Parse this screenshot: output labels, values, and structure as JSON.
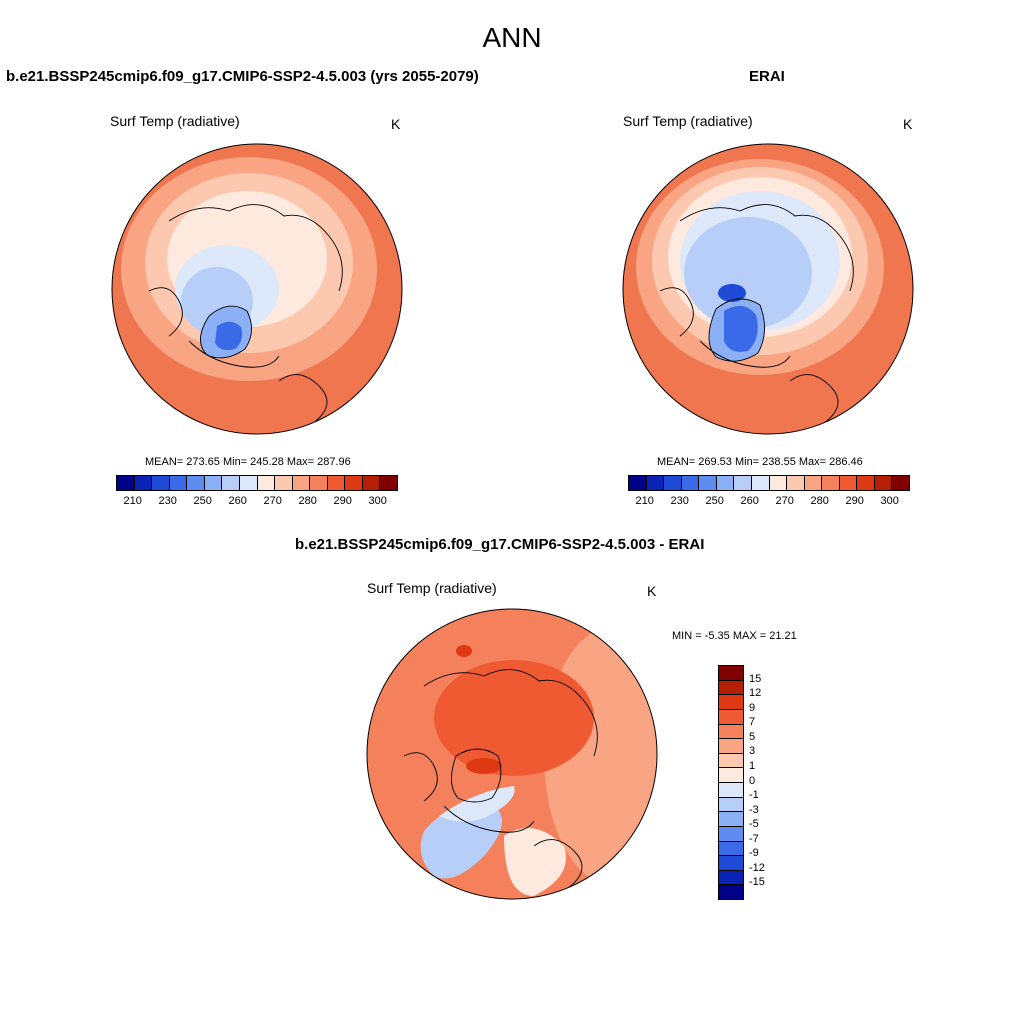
{
  "figure": {
    "title": "ANN"
  },
  "panels": {
    "model": {
      "title": "b.e21.BSSP245cmip6.f09_g17.CMIP6-SSP2-4.5.003 (yrs 2055-2079)",
      "variable": "Surf Temp (radiative)",
      "units": "K",
      "stats": "MEAN= 273.65  Min= 245.28  Max= 287.96"
    },
    "obs": {
      "title": "ERAI",
      "variable": "Surf Temp (radiative)",
      "units": "K",
      "stats": "MEAN= 269.53  Min= 238.55  Max= 286.46"
    },
    "diff": {
      "title": "b.e21.BSSP245cmip6.f09_g17.CMIP6-SSP2-4.5.003 - ERAI",
      "variable": "Surf Temp (radiative)",
      "units": "K",
      "stats": "MIN =  -5.35 MAX =  21.21"
    }
  },
  "colorbars": {
    "abs": {
      "colors": [
        "#00008b",
        "#0a22b5",
        "#1f4ad6",
        "#3a6ae8",
        "#5e8cf0",
        "#8bb0f5",
        "#b7cff8",
        "#dde9fb",
        "#fde9de",
        "#fcc8b0",
        "#f9a584",
        "#f5805c",
        "#ef5a32",
        "#de3912",
        "#b51f06",
        "#800000"
      ],
      "tick_labels": [
        "210",
        "230",
        "250",
        "260",
        "270",
        "280",
        "290",
        "300"
      ]
    },
    "diff": {
      "colors": [
        "#800000",
        "#b51f06",
        "#de3912",
        "#ef5a32",
        "#f5805c",
        "#f9a584",
        "#fcc8b0",
        "#fde9de",
        "#dde9fb",
        "#b7cff8",
        "#8bb0f5",
        "#5e8cf0",
        "#3a6ae8",
        "#1f4ad6",
        "#0a22b5",
        "#00008b"
      ],
      "tick_labels": [
        "15",
        "12",
        "9",
        "7",
        "5",
        "3",
        "1",
        "0",
        "-1",
        "-3",
        "-5",
        "-7",
        "-9",
        "-12",
        "-15"
      ]
    }
  },
  "map_colors": {
    "ocean_edge": "#f07650",
    "mid_warm": "#f9a584",
    "light_warm": "#fcc8b0",
    "very_light": "#fde9de",
    "light_cool": "#dde9fb",
    "cool": "#b7cff8",
    "mid_cool": "#8bb0f5",
    "deep_cool": "#3a6ae8",
    "strong_cool": "#1f4ad6",
    "diff_base": "#f5805c",
    "diff_strong": "#ef5a32",
    "diff_hot": "#de3912",
    "diff_light": "#f9a584"
  }
}
